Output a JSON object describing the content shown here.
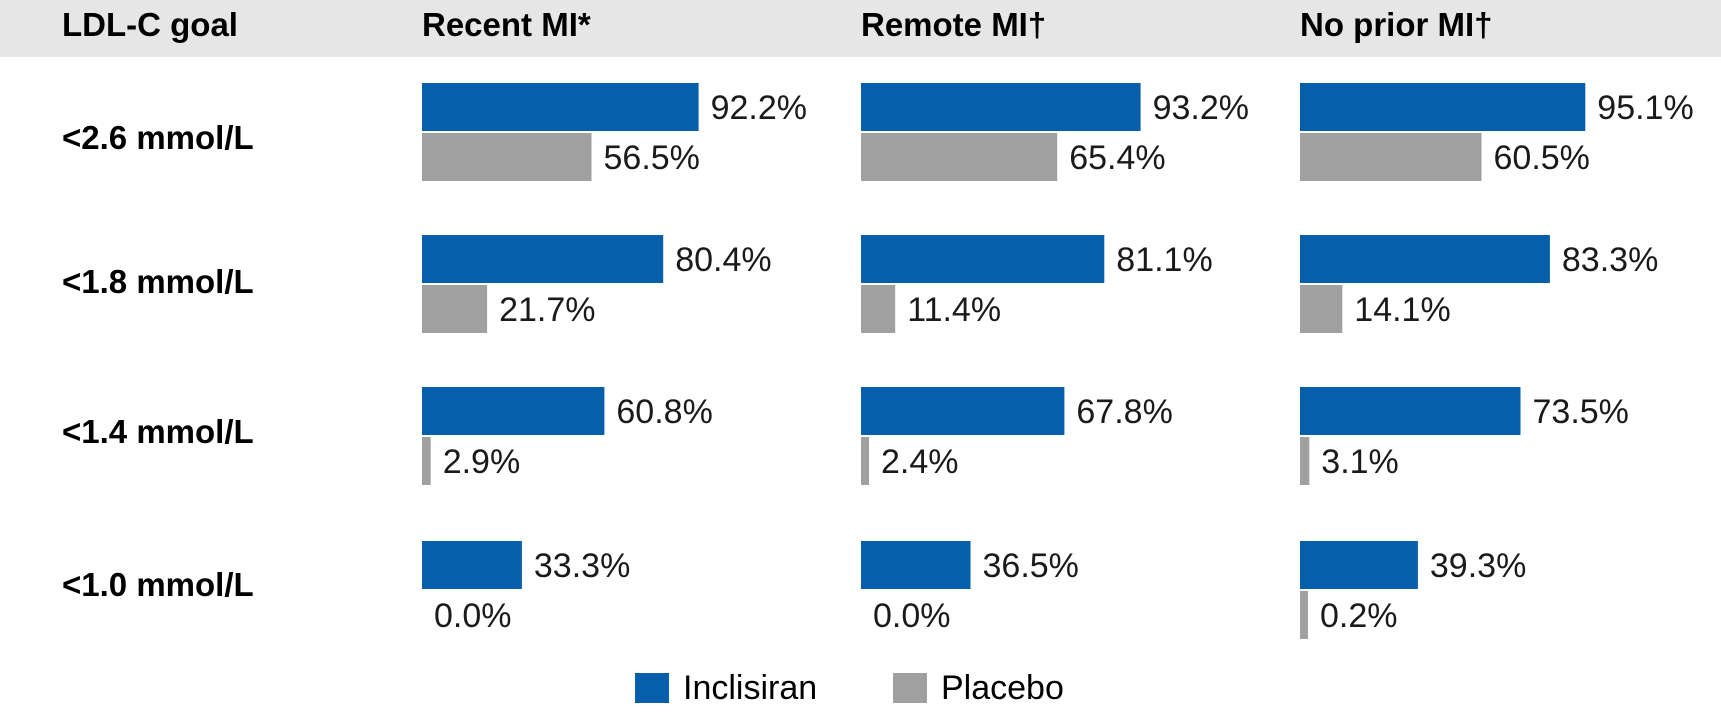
{
  "colors": {
    "inclisiran": "#075fac",
    "placebo": "#a0a0a0",
    "header_band": "#e6e6e6"
  },
  "header": {
    "goal_label": "LDL-C goal",
    "groups": [
      "Recent MI*",
      "Remote MI†",
      "No prior MI†"
    ]
  },
  "chart_data": {
    "type": "bar",
    "orientation": "horizontal",
    "title": "",
    "xlabel": "",
    "ylabel": "LDL-C goal",
    "xlim": [
      0,
      100
    ],
    "grid": false,
    "legend_position": "bottom",
    "categories": [
      "<2.6 mmol/L",
      "<1.8 mmol/L",
      "<1.4 mmol/L",
      "<1.0 mmol/L"
    ],
    "groups": [
      {
        "name": "Recent MI*",
        "series": [
          {
            "name": "Inclisiran",
            "values": [
              92.2,
              80.4,
              60.8,
              33.3
            ],
            "labels": [
              "92.2%",
              "80.4%",
              "60.8%",
              "33.3%"
            ]
          },
          {
            "name": "Placebo",
            "values": [
              56.5,
              21.7,
              2.9,
              0.0
            ],
            "labels": [
              "56.5%",
              "21.7%",
              "2.9%",
              "0.0%"
            ]
          }
        ]
      },
      {
        "name": "Remote MI†",
        "series": [
          {
            "name": "Inclisiran",
            "values": [
              93.2,
              81.1,
              67.8,
              36.5
            ],
            "labels": [
              "93.2%",
              "81.1%",
              "67.8%",
              "36.5%"
            ]
          },
          {
            "name": "Placebo",
            "values": [
              65.4,
              11.4,
              2.4,
              0.0
            ],
            "labels": [
              "65.4%",
              "11.4%",
              "2.4%",
              "0.0%"
            ]
          }
        ]
      },
      {
        "name": "No prior MI†",
        "series": [
          {
            "name": "Inclisiran",
            "values": [
              95.1,
              83.3,
              73.5,
              39.3
            ],
            "labels": [
              "95.1%",
              "83.3%",
              "73.5%",
              "39.3%"
            ]
          },
          {
            "name": "Placebo",
            "values": [
              60.5,
              14.1,
              3.1,
              0.2
            ],
            "labels": [
              "60.5%",
              "14.1%",
              "3.1%",
              "0.2%"
            ]
          }
        ]
      }
    ]
  },
  "legend": {
    "items": [
      "Inclisiran",
      "Placebo"
    ]
  }
}
